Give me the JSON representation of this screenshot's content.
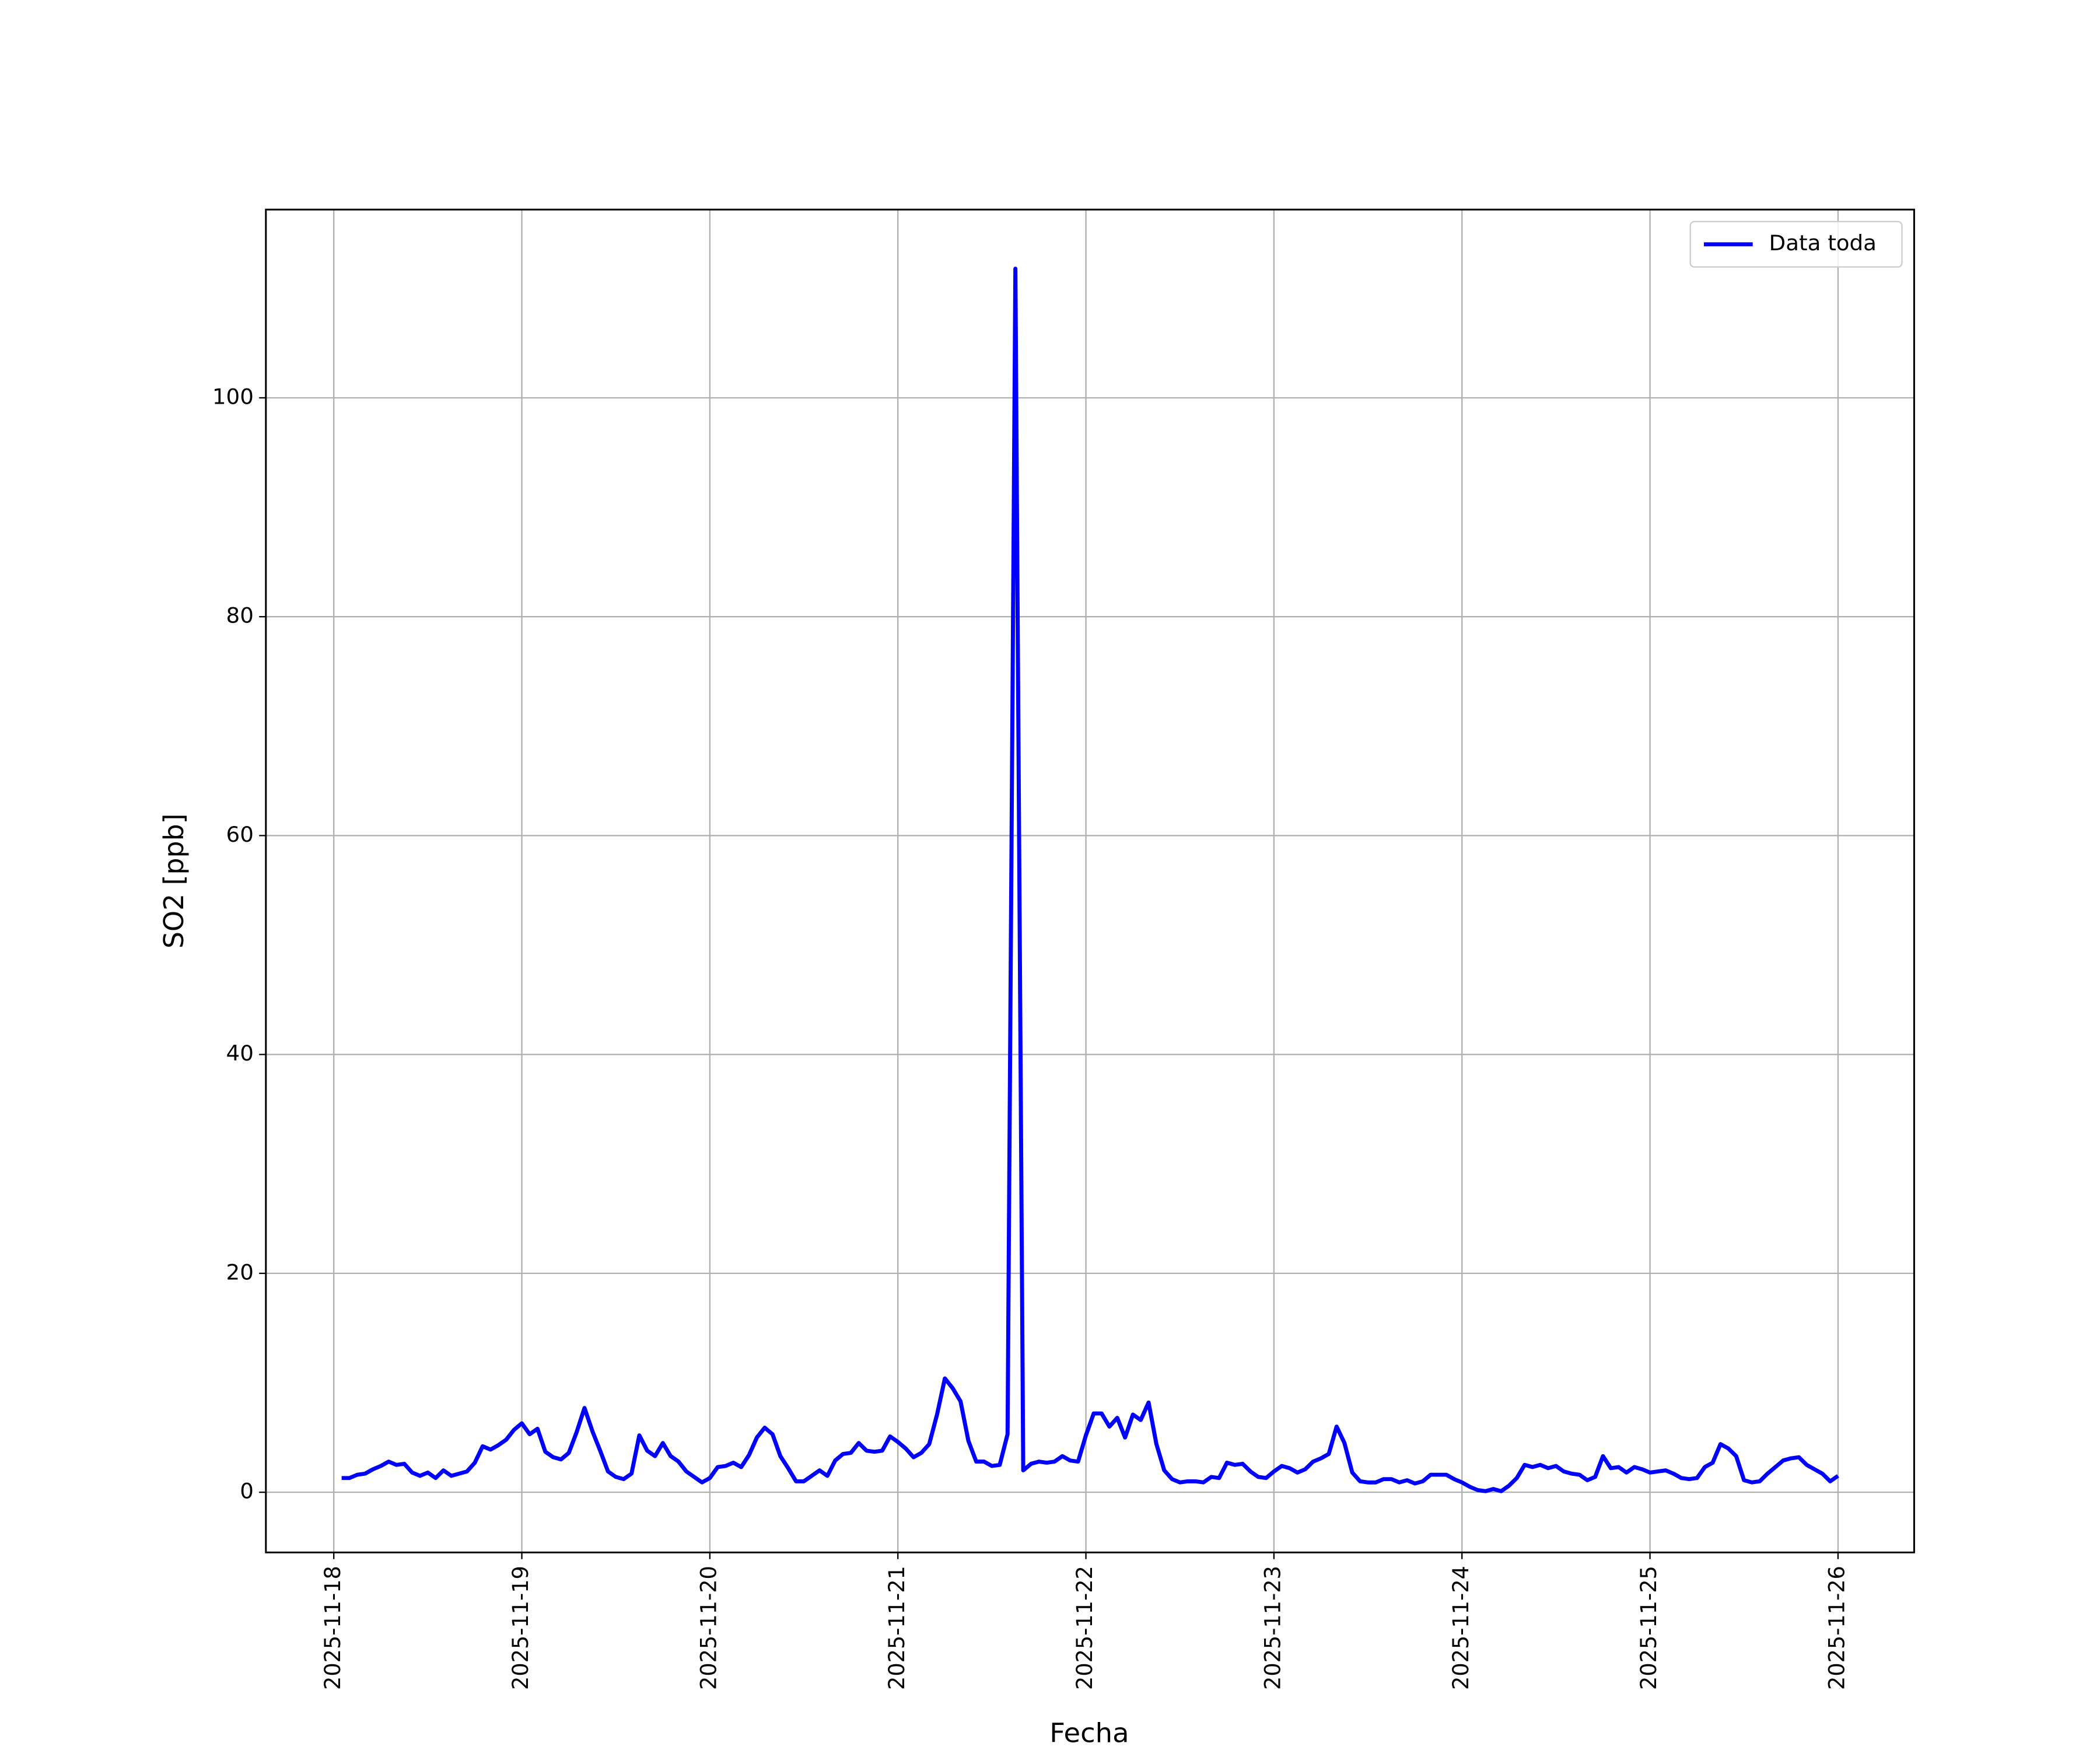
{
  "chart_data": {
    "type": "line",
    "xlabel": "Fecha",
    "ylabel": "SO2 [ppb]",
    "x": [
      "2025-11-18 01:00",
      "2025-11-18 02:00",
      "2025-11-18 03:00",
      "2025-11-18 04:00",
      "2025-11-18 05:00",
      "2025-11-18 06:00",
      "2025-11-18 07:00",
      "2025-11-18 08:00",
      "2025-11-18 09:00",
      "2025-11-18 10:00",
      "2025-11-18 11:00",
      "2025-11-18 12:00",
      "2025-11-18 13:00",
      "2025-11-18 14:00",
      "2025-11-18 15:00",
      "2025-11-18 16:00",
      "2025-11-18 17:00",
      "2025-11-18 18:00",
      "2025-11-18 19:00",
      "2025-11-18 20:00",
      "2025-11-18 21:00",
      "2025-11-18 22:00",
      "2025-11-18 23:00",
      "2025-11-19 00:00",
      "2025-11-19 01:00",
      "2025-11-19 02:00",
      "2025-11-19 03:00",
      "2025-11-19 04:00",
      "2025-11-19 05:00",
      "2025-11-19 06:00",
      "2025-11-19 07:00",
      "2025-11-19 08:00",
      "2025-11-19 09:00",
      "2025-11-19 10:00",
      "2025-11-19 11:00",
      "2025-11-19 12:00",
      "2025-11-19 13:00",
      "2025-11-19 14:00",
      "2025-11-19 15:00",
      "2025-11-19 16:00",
      "2025-11-19 17:00",
      "2025-11-19 18:00",
      "2025-11-19 19:00",
      "2025-11-19 20:00",
      "2025-11-19 21:00",
      "2025-11-19 22:00",
      "2025-11-19 23:00",
      "2025-11-20 00:00",
      "2025-11-20 01:00",
      "2025-11-20 02:00",
      "2025-11-20 03:00",
      "2025-11-20 04:00",
      "2025-11-20 05:00",
      "2025-11-20 06:00",
      "2025-11-20 07:00",
      "2025-11-20 08:00",
      "2025-11-20 09:00",
      "2025-11-20 10:00",
      "2025-11-20 11:00",
      "2025-11-20 12:00",
      "2025-11-20 13:00",
      "2025-11-20 14:00",
      "2025-11-20 15:00",
      "2025-11-20 16:00",
      "2025-11-20 17:00",
      "2025-11-20 18:00",
      "2025-11-20 19:00",
      "2025-11-20 20:00",
      "2025-11-20 21:00",
      "2025-11-20 22:00",
      "2025-11-20 23:00",
      "2025-11-21 00:00",
      "2025-11-21 01:00",
      "2025-11-21 02:00",
      "2025-11-21 03:00",
      "2025-11-21 04:00",
      "2025-11-21 05:00",
      "2025-11-21 06:00",
      "2025-11-21 07:00",
      "2025-11-21 08:00",
      "2025-11-21 09:00",
      "2025-11-21 10:00",
      "2025-11-21 11:00",
      "2025-11-21 12:00",
      "2025-11-21 13:00",
      "2025-11-21 14:00",
      "2025-11-21 15:00",
      "2025-11-21 16:00",
      "2025-11-21 17:00",
      "2025-11-21 18:00",
      "2025-11-21 19:00",
      "2025-11-21 20:00",
      "2025-11-21 21:00",
      "2025-11-21 22:00",
      "2025-11-21 23:00",
      "2025-11-22 00:00",
      "2025-11-22 01:00",
      "2025-11-22 02:00",
      "2025-11-22 03:00",
      "2025-11-22 04:00",
      "2025-11-22 05:00",
      "2025-11-22 06:00",
      "2025-11-22 07:00",
      "2025-11-22 08:00",
      "2025-11-22 09:00",
      "2025-11-22 10:00",
      "2025-11-22 11:00",
      "2025-11-22 12:00",
      "2025-11-22 13:00",
      "2025-11-22 14:00",
      "2025-11-22 15:00",
      "2025-11-22 16:00",
      "2025-11-22 17:00",
      "2025-11-22 18:00",
      "2025-11-22 19:00",
      "2025-11-22 20:00",
      "2025-11-22 21:00",
      "2025-11-22 22:00",
      "2025-11-22 23:00",
      "2025-11-23 00:00",
      "2025-11-23 01:00",
      "2025-11-23 02:00",
      "2025-11-23 03:00",
      "2025-11-23 04:00",
      "2025-11-23 05:00",
      "2025-11-23 06:00",
      "2025-11-23 07:00",
      "2025-11-23 08:00",
      "2025-11-23 09:00",
      "2025-11-23 10:00",
      "2025-11-23 11:00",
      "2025-11-23 12:00",
      "2025-11-23 13:00",
      "2025-11-23 14:00",
      "2025-11-23 15:00",
      "2025-11-23 16:00",
      "2025-11-23 17:00",
      "2025-11-23 18:00",
      "2025-11-23 19:00",
      "2025-11-23 20:00",
      "2025-11-23 21:00",
      "2025-11-23 22:00",
      "2025-11-23 23:00",
      "2025-11-24 00:00",
      "2025-11-24 01:00",
      "2025-11-24 02:00",
      "2025-11-24 03:00",
      "2025-11-24 04:00",
      "2025-11-24 05:00",
      "2025-11-24 06:00",
      "2025-11-24 07:00",
      "2025-11-24 08:00",
      "2025-11-24 09:00",
      "2025-11-24 10:00",
      "2025-11-24 11:00",
      "2025-11-24 12:00",
      "2025-11-24 13:00",
      "2025-11-24 14:00",
      "2025-11-24 15:00",
      "2025-11-24 16:00",
      "2025-11-24 17:00",
      "2025-11-24 18:00",
      "2025-11-24 19:00",
      "2025-11-24 20:00",
      "2025-11-24 21:00",
      "2025-11-24 22:00",
      "2025-11-24 23:00",
      "2025-11-25 00:00",
      "2025-11-25 01:00",
      "2025-11-25 02:00",
      "2025-11-25 03:00",
      "2025-11-25 04:00",
      "2025-11-25 05:00",
      "2025-11-25 06:00",
      "2025-11-25 07:00",
      "2025-11-25 08:00",
      "2025-11-25 09:00",
      "2025-11-25 10:00",
      "2025-11-25 11:00",
      "2025-11-25 12:00",
      "2025-11-25 13:00",
      "2025-11-25 14:00",
      "2025-11-25 15:00",
      "2025-11-25 16:00",
      "2025-11-25 17:00",
      "2025-11-25 18:00",
      "2025-11-25 19:00",
      "2025-11-25 20:00",
      "2025-11-25 21:00",
      "2025-11-25 22:00",
      "2025-11-25 23:00",
      "2025-11-26 00:00"
    ],
    "series": [
      {
        "name": "Data toda",
        "color": "#0000ff",
        "values": [
          1.3,
          1.3,
          1.6,
          1.7,
          2.1,
          2.4,
          2.8,
          2.5,
          2.6,
          1.8,
          1.5,
          1.8,
          1.3,
          2.0,
          1.5,
          1.7,
          1.9,
          2.7,
          4.2,
          3.9,
          4.3,
          4.8,
          5.7,
          6.3,
          5.3,
          5.8,
          3.7,
          3.2,
          3.0,
          3.6,
          5.5,
          7.7,
          5.6,
          3.8,
          1.9,
          1.4,
          1.2,
          1.7,
          5.2,
          3.8,
          3.3,
          4.5,
          3.3,
          2.8,
          1.9,
          1.4,
          0.9,
          1.3,
          2.3,
          2.4,
          2.7,
          2.3,
          3.4,
          5.0,
          5.9,
          5.3,
          3.3,
          2.2,
          1.0,
          1.0,
          1.5,
          2.0,
          1.5,
          2.9,
          3.5,
          3.6,
          4.5,
          3.8,
          3.7,
          3.8,
          5.1,
          4.6,
          4.0,
          3.2,
          3.6,
          4.4,
          7.1,
          10.4,
          9.5,
          8.3,
          4.7,
          2.8,
          2.8,
          2.4,
          2.5,
          5.3,
          111.8,
          2.0,
          2.6,
          2.8,
          2.7,
          2.8,
          3.3,
          2.9,
          2.8,
          5.2,
          7.2,
          7.2,
          6.0,
          6.8,
          5.0,
          7.1,
          6.6,
          8.2,
          4.4,
          2.0,
          1.2,
          0.9,
          1.0,
          1.0,
          0.9,
          1.4,
          1.3,
          2.7,
          2.5,
          2.6,
          1.9,
          1.4,
          1.3,
          1.9,
          2.4,
          2.2,
          1.8,
          2.1,
          2.8,
          3.1,
          3.5,
          6.0,
          4.5,
          1.8,
          1.0,
          0.9,
          0.9,
          1.2,
          1.2,
          0.9,
          1.1,
          0.8,
          1.0,
          1.6,
          1.6,
          1.6,
          1.2,
          0.9,
          0.5,
          0.2,
          0.1,
          0.3,
          0.1,
          0.6,
          1.3,
          2.5,
          2.3,
          2.5,
          2.2,
          2.4,
          1.9,
          1.7,
          1.6,
          1.1,
          1.4,
          3.3,
          2.2,
          2.3,
          1.8,
          2.3,
          2.1,
          1.8,
          1.9,
          2.0,
          1.7,
          1.3,
          1.2,
          1.3,
          2.3,
          2.7,
          4.4,
          4.0,
          3.3,
          1.1,
          0.9,
          1.0,
          1.7,
          2.3,
          2.9,
          3.1,
          3.2,
          2.5,
          2.1,
          1.7,
          1.0,
          1.5
        ]
      }
    ],
    "xlim": [
      "2025-11-17 15:20",
      "2025-11-26 09:43"
    ],
    "xticks": [
      "2025-11-18",
      "2025-11-19",
      "2025-11-20",
      "2025-11-21",
      "2025-11-22",
      "2025-11-23",
      "2025-11-24",
      "2025-11-25",
      "2025-11-26"
    ],
    "ylim": [
      -5.5,
      117.2
    ],
    "yticks": [
      0,
      20,
      40,
      60,
      80,
      100
    ],
    "grid": true,
    "legend": "upper right"
  }
}
